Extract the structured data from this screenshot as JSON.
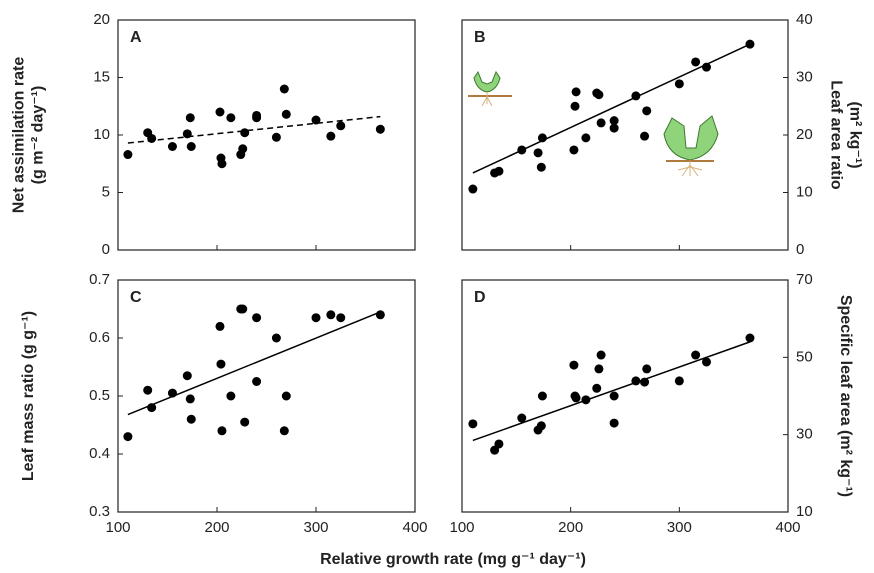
{
  "xlabel": "Relative growth rate (mg g⁻¹ day⁻¹)",
  "chart_data": [
    {
      "type": "scatter",
      "label": "A",
      "axis_side": "left",
      "show_xticks": false,
      "ylabel": [
        "Net assimilation rate",
        "(g m⁻² day⁻¹)"
      ],
      "xlim": [
        100,
        400
      ],
      "xticks": [
        100,
        200,
        300,
        400
      ],
      "ylim": [
        0,
        20
      ],
      "yticks": [
        0,
        5,
        10,
        15,
        20
      ],
      "x": [
        110,
        130,
        134,
        155,
        170,
        173,
        174,
        203,
        204,
        205,
        214,
        224,
        226,
        228,
        240,
        240,
        260,
        268,
        270,
        300,
        315,
        325,
        365
      ],
      "values": [
        8.3,
        10.2,
        9.7,
        9.0,
        10.1,
        11.5,
        9.0,
        12.0,
        8.0,
        7.5,
        11.5,
        8.3,
        8.8,
        10.2,
        11.7,
        11.5,
        9.8,
        14.0,
        11.8,
        11.3,
        9.9,
        10.8,
        10.5
      ],
      "color": "#000000",
      "fit": {
        "x": [
          110,
          365
        ],
        "y": [
          9.3,
          11.6
        ],
        "style": "dashed"
      }
    },
    {
      "type": "scatter",
      "label": "B",
      "axis_side": "right",
      "show_xticks": false,
      "ylabel": [
        "Leaf area ratio",
        "(m² kg⁻¹)"
      ],
      "xlim": [
        100,
        400
      ],
      "xticks": [
        100,
        200,
        300,
        400
      ],
      "ylim": [
        0,
        40
      ],
      "yticks": [
        0,
        10,
        20,
        30,
        40
      ],
      "x": [
        110,
        130,
        134,
        155,
        170,
        173,
        174,
        203,
        204,
        205,
        214,
        224,
        226,
        228,
        240,
        240,
        260,
        268,
        270,
        300,
        315,
        325,
        365
      ],
      "values": [
        10.6,
        13.4,
        13.7,
        17.4,
        16.9,
        14.4,
        19.5,
        17.4,
        25.0,
        27.5,
        19.5,
        27.3,
        27.0,
        22.1,
        21.2,
        22.5,
        26.8,
        19.8,
        24.2,
        28.9,
        32.7,
        31.8,
        35.8
      ],
      "color": "#000000",
      "fit": {
        "x": [
          110,
          365
        ],
        "y": [
          13.4,
          35.8
        ],
        "style": "solid"
      }
    },
    {
      "type": "scatter",
      "label": "C",
      "axis_side": "left",
      "show_xticks": true,
      "ylabel": [
        "Leaf mass ratio (g g⁻¹)"
      ],
      "xlim": [
        100,
        400
      ],
      "xticks": [
        100,
        200,
        300,
        400
      ],
      "ylim": [
        0.3,
        0.7
      ],
      "yticks": [
        0.3,
        0.4,
        0.5,
        0.6,
        0.7
      ],
      "x": [
        110,
        130,
        134,
        155,
        170,
        173,
        174,
        203,
        204,
        205,
        214,
        224,
        226,
        228,
        240,
        240,
        260,
        268,
        270,
        300,
        315,
        325,
        365
      ],
      "values": [
        0.43,
        0.51,
        0.48,
        0.505,
        0.535,
        0.495,
        0.46,
        0.62,
        0.555,
        0.44,
        0.5,
        0.65,
        0.65,
        0.455,
        0.525,
        0.635,
        0.6,
        0.44,
        0.5,
        0.635,
        0.64,
        0.635,
        0.64
      ],
      "color": "#000000",
      "fit": {
        "x": [
          110,
          365
        ],
        "y": [
          0.468,
          0.645
        ],
        "style": "solid"
      }
    },
    {
      "type": "scatter",
      "label": "D",
      "axis_side": "right",
      "show_xticks": true,
      "ylabel": [
        "Specific leaf area (m² kg⁻¹)"
      ],
      "xlim": [
        100,
        400
      ],
      "xticks": [
        100,
        200,
        300,
        400
      ],
      "ylim": [
        10,
        70
      ],
      "yticks": [
        10,
        30,
        50,
        70
      ],
      "x": [
        110,
        130,
        134,
        155,
        170,
        173,
        174,
        203,
        204,
        205,
        214,
        224,
        226,
        228,
        240,
        240,
        260,
        268,
        270,
        300,
        315,
        325,
        365
      ],
      "values": [
        32.8,
        26.0,
        27.6,
        34.3,
        31.2,
        32.3,
        40.0,
        48.0,
        40.0,
        39.5,
        39.0,
        42.0,
        47.0,
        50.6,
        40.0,
        33.0,
        43.9,
        43.6,
        47.0,
        43.9,
        50.6,
        48.8,
        55.0
      ],
      "color": "#000000",
      "fit": {
        "x": [
          110,
          365
        ],
        "y": [
          28.5,
          54.0
        ],
        "style": "solid"
      }
    }
  ]
}
